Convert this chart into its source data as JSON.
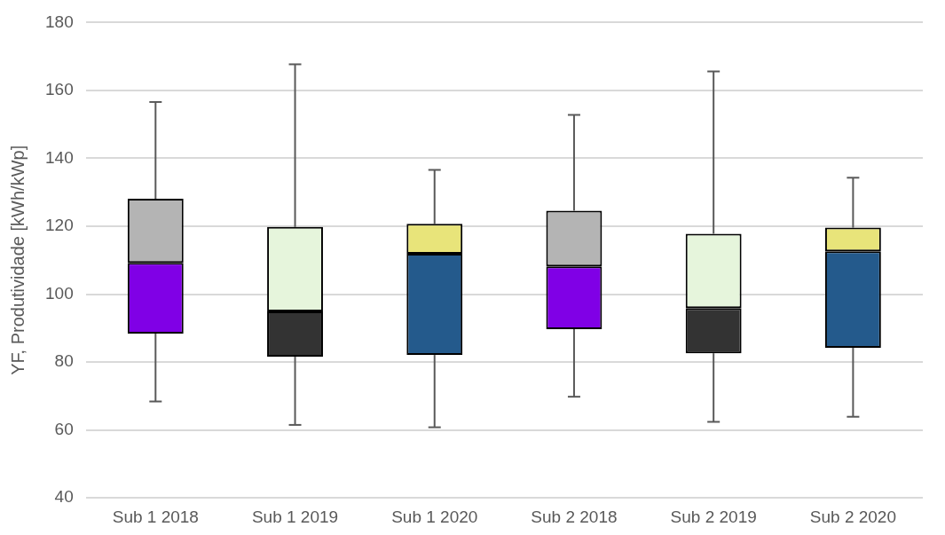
{
  "chart_data": {
    "type": "box",
    "ylabel": "YF, Produtividade [kWh/kWp]",
    "categories": [
      "Sub 1 2018",
      "Sub 1 2019",
      "Sub 1 2020",
      "Sub 2 2018",
      "Sub 2 2019",
      "Sub 2 2020"
    ],
    "boxes": [
      {
        "low": 68.4,
        "q1": 88.4,
        "median": 109.2,
        "q3": 128.1,
        "high": 156.6
      },
      {
        "low": 61.5,
        "q1": 81.6,
        "median": 94.9,
        "q3": 119.8,
        "high": 167.7
      },
      {
        "low": 60.8,
        "q1": 82.1,
        "median": 111.9,
        "q3": 120.7,
        "high": 136.6
      },
      {
        "low": 69.8,
        "q1": 89.7,
        "median": 108.2,
        "q3": 124.6,
        "high": 152.8
      },
      {
        "low": 62.4,
        "q1": 82.6,
        "median": 95.9,
        "q3": 117.8,
        "high": 165.6
      },
      {
        "low": 63.9,
        "q1": 84.2,
        "median": 112.6,
        "q3": 119.6,
        "high": 134.3
      }
    ],
    "colors": [
      [
        "#8000e6",
        "#b4b4b4"
      ],
      [
        "#333333",
        "#e6f5dc"
      ],
      [
        "#245a8c",
        "#e8e47a"
      ],
      [
        "#8000e6",
        "#b4b4b4"
      ],
      [
        "#333333",
        "#e6f5dc"
      ],
      [
        "#245a8c",
        "#e8e47a"
      ]
    ],
    "ylim": [
      40,
      180
    ],
    "yticks": [
      40,
      60,
      80,
      100,
      120,
      140,
      160,
      180
    ],
    "grid": "y",
    "legend": false
  }
}
